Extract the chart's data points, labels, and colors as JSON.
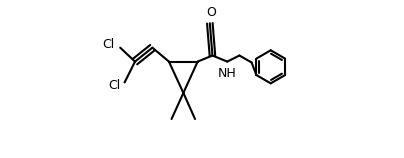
{
  "bg_color": "#ffffff",
  "line_color": "#000000",
  "line_width": 1.5,
  "font_size": 9,
  "figsize": [
    4.04,
    1.58
  ],
  "dpi": 100,
  "xlim": [
    0.0,
    1.0
  ],
  "ylim": [
    0.05,
    0.95
  ]
}
